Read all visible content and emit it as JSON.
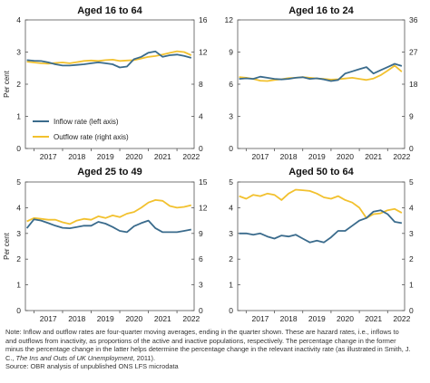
{
  "chart_data": [
    {
      "type": "line",
      "title": "Aged 16 to 64",
      "ylabel": "Per cent",
      "ylim_left": [
        0,
        4
      ],
      "yticks_left": [
        "0",
        "1",
        "2",
        "3",
        "4"
      ],
      "ylim_right": [
        0,
        16
      ],
      "yticks_right": [
        "0",
        "4",
        "8",
        "12",
        "16"
      ],
      "xlim": [
        2016.7,
        2022.6
      ],
      "xticks": [
        "2017",
        "2018",
        "2019",
        "2020",
        "2021",
        "2022"
      ],
      "legend": {
        "placement": "bottom-left",
        "entries": [
          "Inflow rate (left axis)",
          "Outflow rate (right axis)"
        ]
      },
      "series": [
        {
          "name": "Inflow rate (left axis)",
          "axis": "left",
          "color": "#3a6b8c",
          "x": [
            2016.75,
            2017.0,
            2017.25,
            2017.5,
            2017.75,
            2018.0,
            2018.25,
            2018.5,
            2018.75,
            2019.0,
            2019.25,
            2019.5,
            2019.75,
            2020.0,
            2020.25,
            2020.5,
            2020.75,
            2021.0,
            2021.25,
            2021.5,
            2021.75,
            2022.0,
            2022.25,
            2022.5
          ],
          "values": [
            2.75,
            2.73,
            2.72,
            2.68,
            2.62,
            2.58,
            2.58,
            2.6,
            2.62,
            2.65,
            2.68,
            2.65,
            2.62,
            2.52,
            2.55,
            2.78,
            2.85,
            2.98,
            3.02,
            2.85,
            2.9,
            2.92,
            2.88,
            2.82
          ]
        },
        {
          "name": "Outflow rate (right axis)",
          "axis": "right",
          "color": "#f2c12e",
          "x": [
            2016.75,
            2017.0,
            2017.25,
            2017.5,
            2017.75,
            2018.0,
            2018.25,
            2018.5,
            2018.75,
            2019.0,
            2019.25,
            2019.5,
            2019.75,
            2020.0,
            2020.25,
            2020.5,
            2020.75,
            2021.0,
            2021.25,
            2021.5,
            2021.75,
            2022.0,
            2022.25,
            2022.5
          ],
          "values": [
            10.8,
            10.7,
            10.6,
            10.55,
            10.65,
            10.7,
            10.6,
            10.75,
            10.9,
            10.95,
            10.9,
            11.0,
            11.05,
            10.9,
            10.95,
            11.0,
            11.2,
            11.4,
            11.5,
            11.7,
            11.9,
            12.1,
            12.0,
            11.6
          ]
        }
      ]
    },
    {
      "type": "line",
      "title": "Aged 16 to 24",
      "ylabel": "",
      "ylim_left": [
        0,
        12
      ],
      "yticks_left": [
        "0",
        "3",
        "6",
        "9",
        "12"
      ],
      "ylim_right": [
        0,
        36
      ],
      "yticks_right": [
        "0",
        "9",
        "18",
        "27",
        "36"
      ],
      "xlim": [
        2016.7,
        2022.6
      ],
      "xticks": [
        "2017",
        "2018",
        "2019",
        "2020",
        "2021",
        "2022"
      ],
      "series": [
        {
          "name": "Inflow rate (left axis)",
          "axis": "left",
          "color": "#3a6b8c",
          "x": [
            2016.75,
            2017.0,
            2017.25,
            2017.5,
            2017.75,
            2018.0,
            2018.25,
            2018.5,
            2018.75,
            2019.0,
            2019.25,
            2019.5,
            2019.75,
            2020.0,
            2020.25,
            2020.5,
            2020.75,
            2021.0,
            2021.25,
            2021.5,
            2021.75,
            2022.0,
            2022.25,
            2022.5
          ],
          "values": [
            6.5,
            6.55,
            6.5,
            6.7,
            6.6,
            6.5,
            6.45,
            6.5,
            6.6,
            6.65,
            6.5,
            6.55,
            6.45,
            6.3,
            6.4,
            7.0,
            7.2,
            7.4,
            7.6,
            7.0,
            7.3,
            7.6,
            7.9,
            7.7
          ]
        },
        {
          "name": "Outflow rate (right axis)",
          "axis": "right",
          "color": "#f2c12e",
          "x": [
            2016.75,
            2017.0,
            2017.25,
            2017.5,
            2017.75,
            2018.0,
            2018.25,
            2018.5,
            2018.75,
            2019.0,
            2019.25,
            2019.5,
            2019.75,
            2020.0,
            2020.25,
            2020.5,
            2020.75,
            2021.0,
            2021.25,
            2021.5,
            2021.75,
            2022.0,
            2022.25,
            2022.5
          ],
          "values": [
            20.0,
            19.8,
            19.5,
            19.0,
            18.9,
            19.2,
            19.4,
            19.7,
            19.8,
            20.0,
            19.8,
            19.6,
            19.5,
            19.3,
            19.4,
            19.6,
            19.8,
            19.5,
            19.2,
            19.6,
            20.5,
            21.8,
            23.2,
            21.5
          ]
        }
      ]
    },
    {
      "type": "line",
      "title": "Aged 25 to 49",
      "ylabel": "Per cent",
      "ylim_left": [
        0,
        5
      ],
      "yticks_left": [
        "0",
        "1",
        "2",
        "3",
        "4",
        "5"
      ],
      "ylim_right": [
        0,
        15
      ],
      "yticks_right": [
        "0",
        "3",
        "6",
        "9",
        "12",
        "15"
      ],
      "xlim": [
        2016.7,
        2022.6
      ],
      "xticks": [
        "2017",
        "2018",
        "2019",
        "2020",
        "2021",
        "2022"
      ],
      "series": [
        {
          "name": "Inflow rate (left axis)",
          "axis": "left",
          "color": "#3a6b8c",
          "x": [
            2016.75,
            2017.0,
            2017.25,
            2017.5,
            2017.75,
            2018.0,
            2018.25,
            2018.5,
            2018.75,
            2019.0,
            2019.25,
            2019.5,
            2019.75,
            2020.0,
            2020.25,
            2020.5,
            2020.75,
            2021.0,
            2021.25,
            2021.5,
            2021.75,
            2022.0,
            2022.25,
            2022.5
          ],
          "values": [
            3.2,
            3.55,
            3.5,
            3.4,
            3.3,
            3.22,
            3.2,
            3.25,
            3.3,
            3.3,
            3.45,
            3.38,
            3.25,
            3.1,
            3.05,
            3.28,
            3.4,
            3.5,
            3.2,
            3.05,
            3.05,
            3.05,
            3.1,
            3.15
          ]
        },
        {
          "name": "Outflow rate (right axis)",
          "axis": "right",
          "color": "#f2c12e",
          "x": [
            2016.75,
            2017.0,
            2017.25,
            2017.5,
            2017.75,
            2018.0,
            2018.25,
            2018.5,
            2018.75,
            2019.0,
            2019.25,
            2019.5,
            2019.75,
            2020.0,
            2020.25,
            2020.5,
            2020.75,
            2021.0,
            2021.25,
            2021.5,
            2021.75,
            2022.0,
            2022.25,
            2022.5
          ],
          "values": [
            10.4,
            10.8,
            10.7,
            10.6,
            10.6,
            10.3,
            10.1,
            10.5,
            10.7,
            10.6,
            11.0,
            10.8,
            11.1,
            10.9,
            11.3,
            11.5,
            12.0,
            12.6,
            12.9,
            12.8,
            12.2,
            12.0,
            12.1,
            12.3
          ]
        }
      ]
    },
    {
      "type": "line",
      "title": "Aged 50 to 64",
      "ylabel": "",
      "ylim_left": [
        0,
        5
      ],
      "yticks_left": [
        "0",
        "1",
        "2",
        "3",
        "4",
        "5"
      ],
      "ylim_right": [
        0,
        5
      ],
      "yticks_right": [
        "0",
        "1",
        "2",
        "3",
        "4",
        "5"
      ],
      "xlim": [
        2016.7,
        2022.6
      ],
      "xticks": [
        "2017",
        "2018",
        "2019",
        "2020",
        "2021",
        "2022"
      ],
      "series": [
        {
          "name": "Inflow rate (left axis)",
          "axis": "left",
          "color": "#3a6b8c",
          "x": [
            2016.75,
            2017.0,
            2017.25,
            2017.5,
            2017.75,
            2018.0,
            2018.25,
            2018.5,
            2018.75,
            2019.0,
            2019.25,
            2019.5,
            2019.75,
            2020.0,
            2020.25,
            2020.5,
            2020.75,
            2021.0,
            2021.25,
            2021.5,
            2021.75,
            2022.0,
            2022.25,
            2022.5
          ],
          "values": [
            3.0,
            3.0,
            2.95,
            3.0,
            2.88,
            2.8,
            2.92,
            2.88,
            2.95,
            2.8,
            2.65,
            2.72,
            2.65,
            2.85,
            3.1,
            3.1,
            3.3,
            3.5,
            3.6,
            3.85,
            3.9,
            3.75,
            3.45,
            3.4
          ]
        },
        {
          "name": "Outflow rate (right axis)",
          "axis": "right",
          "color": "#f2c12e",
          "x": [
            2016.75,
            2017.0,
            2017.25,
            2017.5,
            2017.75,
            2018.0,
            2018.25,
            2018.5,
            2018.75,
            2019.0,
            2019.25,
            2019.5,
            2019.75,
            2020.0,
            2020.25,
            2020.5,
            2020.75,
            2021.0,
            2021.25,
            2021.5,
            2021.75,
            2022.0,
            2022.25,
            2022.5
          ],
          "values": [
            4.45,
            4.35,
            4.5,
            4.45,
            4.55,
            4.5,
            4.3,
            4.55,
            4.7,
            4.68,
            4.65,
            4.55,
            4.4,
            4.35,
            4.45,
            4.3,
            4.2,
            4.0,
            3.6,
            3.75,
            3.78,
            3.9,
            3.95,
            3.8
          ]
        }
      ]
    }
  ],
  "note": {
    "line1": "Note: Inflow and outflow rates are four-quarter moving averages, ending in the quarter shown. These are hazard rates, i.e., inflows to",
    "line2": "and outflows from inactivity, as proportions of the active and inactive populations, respectively. The percentage change in the former",
    "line3": "minus the percentage change in the latter helps determine the percentage change in the relevant inactivity rate (as illustrated in Smith, J.",
    "line4_pre": "C., ",
    "line4_italic": "The Ins and Outs of UK Unemployment",
    "line4_post": ", 2011).",
    "source": "Source: OBR analysis of unpublished ONS LFS microdata"
  }
}
